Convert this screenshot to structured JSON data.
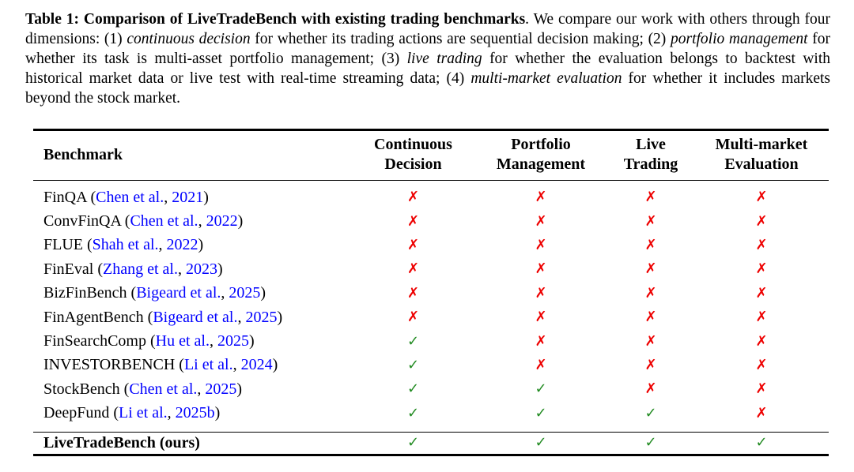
{
  "caption": {
    "label": "Table 1",
    "colon": ": ",
    "title": "Comparison of LiveTradeBench with existing trading benchmarks",
    "seg1": ". We compare our work with others through four dimensions: (1) ",
    "dim1": "continuous decision",
    "seg2": " for whether its trading actions are sequential decision making; (2) ",
    "dim2": "portfolio management",
    "seg3": " for whether its task is multi-asset portfolio management; (3) ",
    "dim3": "live trading",
    "seg4": " for whether the evaluation belongs to backtest with historical market data or live test with real-time streaming data; (4) ",
    "dim4": "multi-market evaluation",
    "seg5": " for whether it includes markets beyond the stock market."
  },
  "table": {
    "headers": {
      "benchmark": "Benchmark",
      "col1_line1": "Continuous",
      "col1_line2": "Decision",
      "col2_line1": "Portfolio",
      "col2_line2": "Management",
      "col3_line1": "Live",
      "col3_line2": "Trading",
      "col4_line1": "Multi-market",
      "col4_line2": "Evaluation"
    },
    "check_glyph": "✓",
    "cross_glyph": "✗",
    "colors": {
      "check": "#228B22",
      "cross": "#EE0000",
      "link": "#0000FF"
    },
    "punct": {
      "open": " (",
      "comma": ", ",
      "close": ")"
    },
    "rows": [
      {
        "name": "FinQA",
        "cite_author": "Chen et al.",
        "cite_year": "2021",
        "marks": [
          "no",
          "no",
          "no",
          "no"
        ]
      },
      {
        "name": "ConvFinQA",
        "cite_author": "Chen et al.",
        "cite_year": "2022",
        "marks": [
          "no",
          "no",
          "no",
          "no"
        ]
      },
      {
        "name": "FLUE",
        "cite_author": "Shah et al.",
        "cite_year": "2022",
        "marks": [
          "no",
          "no",
          "no",
          "no"
        ]
      },
      {
        "name": "FinEval",
        "cite_author": "Zhang et al.",
        "cite_year": "2023",
        "marks": [
          "no",
          "no",
          "no",
          "no"
        ]
      },
      {
        "name": "BizFinBench",
        "cite_author": "Bigeard et al.",
        "cite_year": "2025",
        "marks": [
          "no",
          "no",
          "no",
          "no"
        ]
      },
      {
        "name": "FinAgentBench",
        "cite_author": "Bigeard et al.",
        "cite_year": "2025",
        "marks": [
          "no",
          "no",
          "no",
          "no"
        ]
      },
      {
        "name": "FinSearchComp",
        "cite_author": "Hu et al.",
        "cite_year": "2025",
        "marks": [
          "yes",
          "no",
          "no",
          "no"
        ]
      },
      {
        "name": "INVESTORBENCH",
        "cite_author": "Li et al.",
        "cite_year": "2024",
        "marks": [
          "yes",
          "no",
          "no",
          "no"
        ]
      },
      {
        "name": "StockBench",
        "cite_author": "Chen et al.",
        "cite_year": "2025",
        "marks": [
          "yes",
          "yes",
          "no",
          "no"
        ]
      },
      {
        "name": "DeepFund",
        "cite_author": "Li et al.",
        "cite_year": "2025b",
        "marks": [
          "yes",
          "yes",
          "yes",
          "no"
        ]
      }
    ],
    "footer_row": {
      "name": "LiveTradeBench (ours)",
      "marks": [
        "yes",
        "yes",
        "yes",
        "yes"
      ]
    }
  }
}
